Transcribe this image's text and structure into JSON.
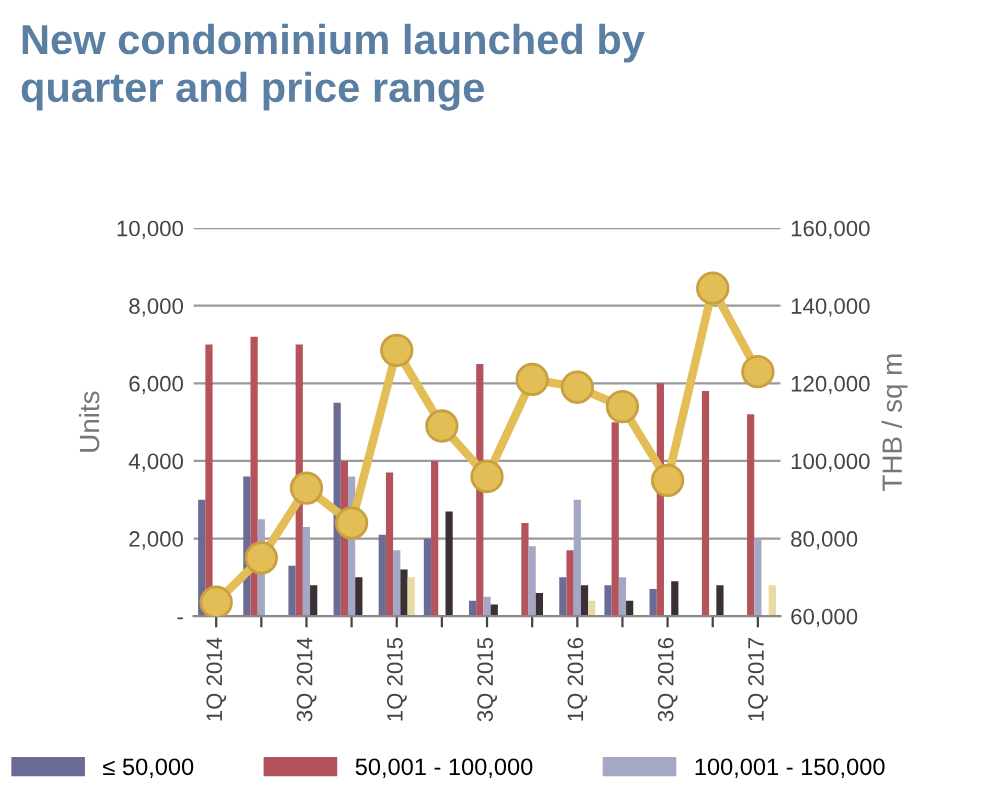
{
  "chart_data": {
    "type": "bar",
    "title": "New condominium launched by\nquarter and price range",
    "ylabel": "Units",
    "y2label": "THB / sq m",
    "categories": [
      "1Q 2014",
      null,
      "3Q 2014",
      null,
      "1Q 2015",
      null,
      "3Q 2015",
      null,
      "1Q 2016",
      null,
      "3Q 2016",
      null,
      "1Q 2017"
    ],
    "series": [
      {
        "name": "≤ 50,000",
        "color": "#6a6c95",
        "values": [
          3000,
          3600,
          1300,
          5500,
          2100,
          2000,
          400,
          null,
          1000,
          800,
          700,
          null,
          null
        ]
      },
      {
        "name": "50,001 - 100,000",
        "color": "#b5535c",
        "values": [
          7000,
          7200,
          7000,
          4000,
          3700,
          4000,
          6500,
          2400,
          1700,
          5000,
          6000,
          5800,
          5200
        ]
      },
      {
        "name": "100,001 - 150,000",
        "color": "#a4a8c4",
        "values": [
          null,
          2500,
          2300,
          3600,
          1700,
          null,
          500,
          1800,
          3000,
          1000,
          null,
          null,
          2000
        ]
      },
      {
        "color": "#3a3035",
        "values": [
          null,
          null,
          800,
          1000,
          1200,
          2700,
          300,
          600,
          800,
          400,
          900,
          800,
          null
        ]
      },
      {
        "color": "#e6dba0",
        "values": [
          null,
          null,
          null,
          null,
          1000,
          null,
          null,
          null,
          400,
          null,
          null,
          null,
          800
        ]
      },
      {
        "type": "line",
        "axis": "y2",
        "color": "#e3bd55",
        "marker": "circle",
        "values": [
          63600,
          75000,
          93000,
          84000,
          128500,
          109000,
          96000,
          121000,
          119000,
          114000,
          95000,
          144500,
          123000
        ]
      }
    ],
    "ylim": [
      0,
      10000
    ],
    "yticks": [
      {
        "value": 0,
        "label": "-"
      },
      {
        "value": 2000,
        "label": "2,000"
      },
      {
        "value": 4000,
        "label": "4,000"
      },
      {
        "value": 6000,
        "label": "6,000"
      },
      {
        "value": 8000,
        "label": "8,000"
      },
      {
        "value": 10000,
        "label": "10,000"
      }
    ],
    "y2lim": [
      60000,
      160000
    ],
    "y2ticks": [
      {
        "value": 60000,
        "label": "60,000"
      },
      {
        "value": 80000,
        "label": "80,000"
      },
      {
        "value": 100000,
        "label": "100,000"
      },
      {
        "value": 120000,
        "label": "120,000"
      },
      {
        "value": 140000,
        "label": "140,000"
      },
      {
        "value": 160000,
        "label": "160,000"
      }
    ],
    "grid": "y",
    "legend": "bottom"
  }
}
